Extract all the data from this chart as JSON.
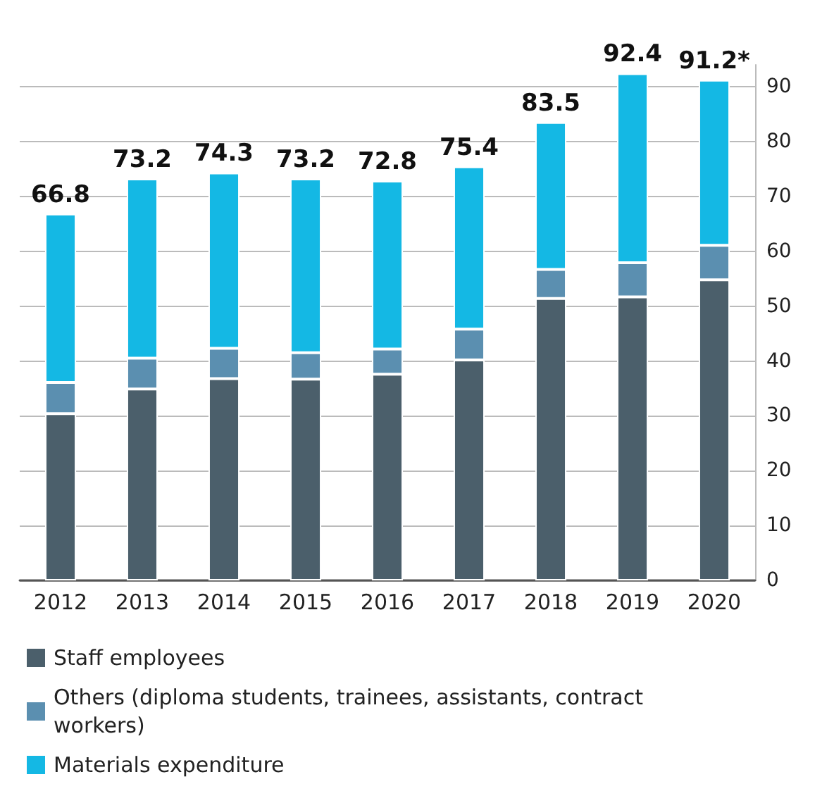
{
  "chart_data": {
    "type": "bar",
    "stacked": true,
    "categories": [
      "2012",
      "2013",
      "2014",
      "2015",
      "2016",
      "2017",
      "2018",
      "2019",
      "2020"
    ],
    "series": [
      {
        "name": "Staff employees",
        "color": "#4b5f6b",
        "values": [
          30.4,
          34.9,
          36.8,
          36.7,
          37.6,
          40.2,
          51.4,
          51.7,
          54.8
        ]
      },
      {
        "name": "Others (diploma students, trainees, assistants, contract workers)",
        "color": "#5b8fb0",
        "values": [
          5.7,
          5.6,
          5.5,
          4.8,
          4.6,
          5.6,
          5.3,
          6.2,
          6.3
        ]
      },
      {
        "name": "Materials expenditure",
        "color": "#14b8e4",
        "values": [
          30.7,
          32.7,
          32.0,
          31.7,
          30.6,
          29.6,
          26.8,
          34.5,
          30.1
        ]
      }
    ],
    "totals": [
      "66.8",
      "73.2",
      "74.3",
      "73.2",
      "72.8",
      "75.4",
      "83.5",
      "92.4",
      "91.2*"
    ],
    "ylim": [
      0,
      94
    ],
    "yticks": [
      0,
      10,
      20,
      30,
      40,
      50,
      60,
      70,
      80,
      90
    ],
    "grid": "y",
    "legend": "bottom"
  }
}
